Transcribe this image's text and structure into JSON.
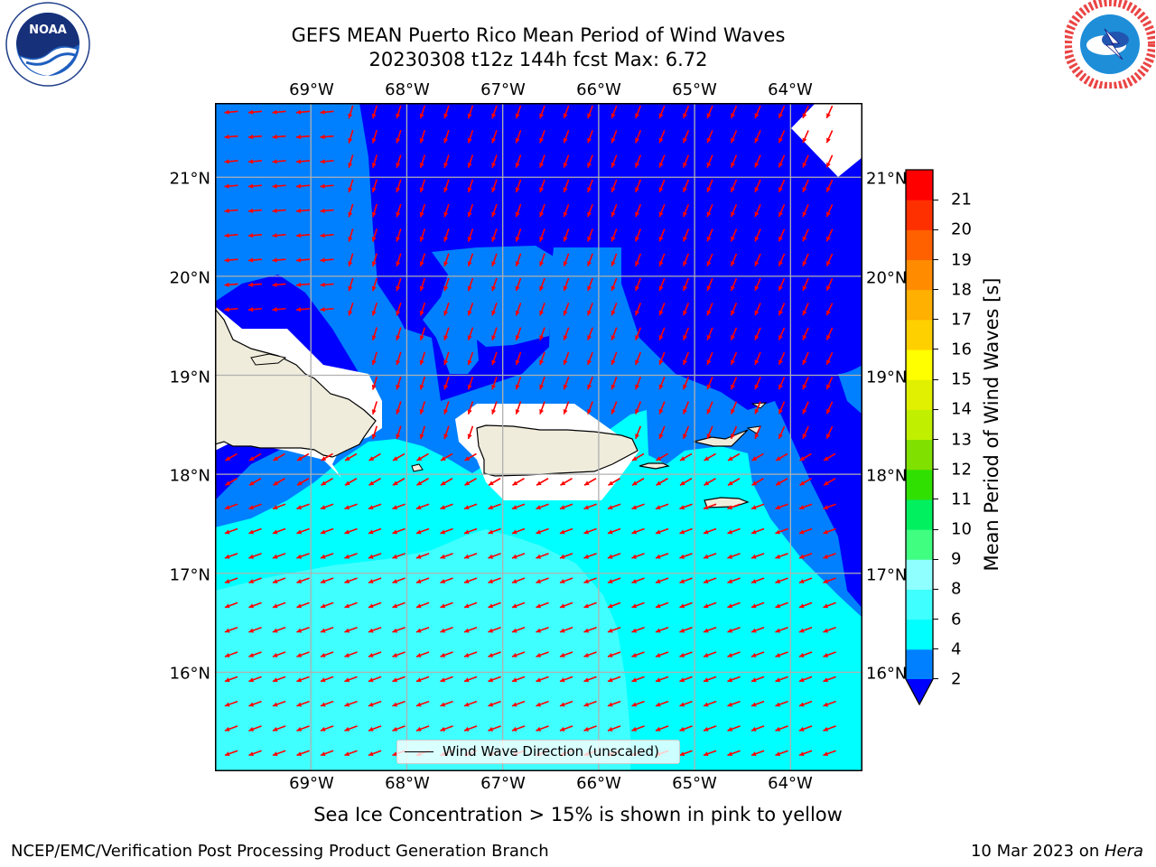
{
  "title": {
    "line1": "GEFS MEAN Puerto Rico Mean Period of Wind Waves",
    "line2": "20230308 t12z 144h fcst   Max: 6.72"
  },
  "logos": {
    "left": {
      "icon": "noaa-logo",
      "text": "NOAA",
      "ring_text": "NATIONAL OCEANIC AND ATMOSPHERIC ADMINISTRATION · U.S. DEPARTMENT OF COMMERCE"
    },
    "right": {
      "icon": "nws-logo",
      "ring_text": "NATIONAL WEATHER SERVICE"
    }
  },
  "map": {
    "lon_ticks": [
      "69°W",
      "68°W",
      "67°W",
      "66°W",
      "65°W",
      "64°W"
    ],
    "lat_ticks": [
      "21°N",
      "20°N",
      "19°N",
      "18°N",
      "17°N",
      "16°N"
    ],
    "extent": {
      "lon_min": -70.0,
      "lon_max": -63.25,
      "lat_min": 15.0,
      "lat_max": 21.75
    },
    "land_color": "#efecdc",
    "grid_color": "#b0b0b0",
    "arrow_color": "#ff0000",
    "legend_label": "Wind Wave Direction (unscaled)"
  },
  "colorbar": {
    "label": "Mean Period of Wind Waves [s]",
    "ticks": [
      "2",
      "4",
      "6",
      "8",
      "9",
      "10",
      "11",
      "12",
      "13",
      "14",
      "15",
      "16",
      "17",
      "18",
      "19",
      "20",
      "21"
    ],
    "levels": [
      2,
      4,
      6,
      8,
      9,
      10,
      11,
      12,
      13,
      14,
      15,
      16,
      17,
      18,
      19,
      20,
      21
    ],
    "colors": [
      "#0080ff",
      "#00ffff",
      "#40ffff",
      "#90ffff",
      "#40ff80",
      "#00f060",
      "#30e000",
      "#80e000",
      "#c0f000",
      "#e0f000",
      "#ffff00",
      "#ffd000",
      "#ffb000",
      "#ff8c00",
      "#ff6000",
      "#ff3000",
      "#ff0000"
    ],
    "extend_color": "#0000ff"
  },
  "footnote": "Sea Ice Concentration > 15% is shown in pink to yellow",
  "credit_left": "NCEP/EMC/Verification Post Processing Product Generation Branch",
  "credit_right_prefix": "10 Mar 2023 on ",
  "credit_right_host": "Hera"
}
